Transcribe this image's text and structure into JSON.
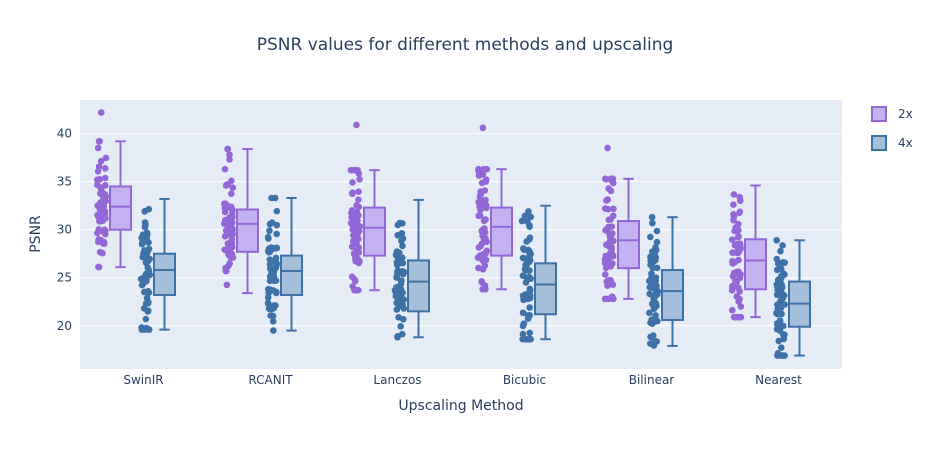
{
  "chart_data": {
    "type": "box",
    "title": "PSNR values for different methods and upscaling",
    "xlabel": "Upscaling Method",
    "ylabel": "PSNR",
    "ylim": [
      15.5,
      43.5
    ],
    "yticks": [
      20,
      25,
      30,
      35,
      40
    ],
    "grid": true,
    "legend_position": "top-right",
    "categories": [
      "SwinIR",
      "RCANIT",
      "Lanczos",
      "Bicubic",
      "Bilinear",
      "Nearest"
    ],
    "series": [
      {
        "name": "2x",
        "fill_color": "#c4b1f0",
        "line_color": "#9467d6",
        "point_color": "#9467d6",
        "boxes": [
          {
            "min": 26.1,
            "q1": 30.0,
            "median": 32.4,
            "q3": 34.5,
            "max": 39.2
          },
          {
            "min": 23.4,
            "q1": 27.7,
            "median": 30.6,
            "q3": 32.1,
            "max": 38.4
          },
          {
            "min": 23.7,
            "q1": 27.3,
            "median": 30.2,
            "q3": 32.3,
            "max": 36.2
          },
          {
            "min": 23.8,
            "q1": 27.3,
            "median": 30.3,
            "q3": 32.3,
            "max": 36.3
          },
          {
            "min": 22.8,
            "q1": 26.0,
            "median": 28.9,
            "q3": 30.9,
            "max": 35.3
          },
          {
            "min": 20.9,
            "q1": 23.8,
            "median": 26.8,
            "q3": 29.0,
            "max": 34.6
          }
        ],
        "outliers": [
          [
            42.2
          ],
          [],
          [
            40.9
          ],
          [
            40.6
          ],
          [
            38.5
          ],
          []
        ]
      },
      {
        "name": "4x",
        "fill_color": "#a3bfd9",
        "line_color": "#3d72a8",
        "point_color": "#3d72a8",
        "boxes": [
          {
            "min": 19.6,
            "q1": 23.2,
            "median": 25.8,
            "q3": 27.5,
            "max": 33.2
          },
          {
            "min": 19.5,
            "q1": 23.2,
            "median": 25.7,
            "q3": 27.3,
            "max": 33.3
          },
          {
            "min": 18.8,
            "q1": 21.5,
            "median": 24.6,
            "q3": 26.8,
            "max": 33.1
          },
          {
            "min": 18.6,
            "q1": 21.2,
            "median": 24.3,
            "q3": 26.5,
            "max": 32.5
          },
          {
            "min": 17.9,
            "q1": 20.6,
            "median": 23.6,
            "q3": 25.8,
            "max": 31.3
          },
          {
            "min": 16.9,
            "q1": 19.9,
            "median": 22.3,
            "q3": 24.6,
            "max": 28.9
          }
        ],
        "outliers": [
          [],
          [],
          [],
          [],
          [],
          []
        ]
      }
    ]
  }
}
